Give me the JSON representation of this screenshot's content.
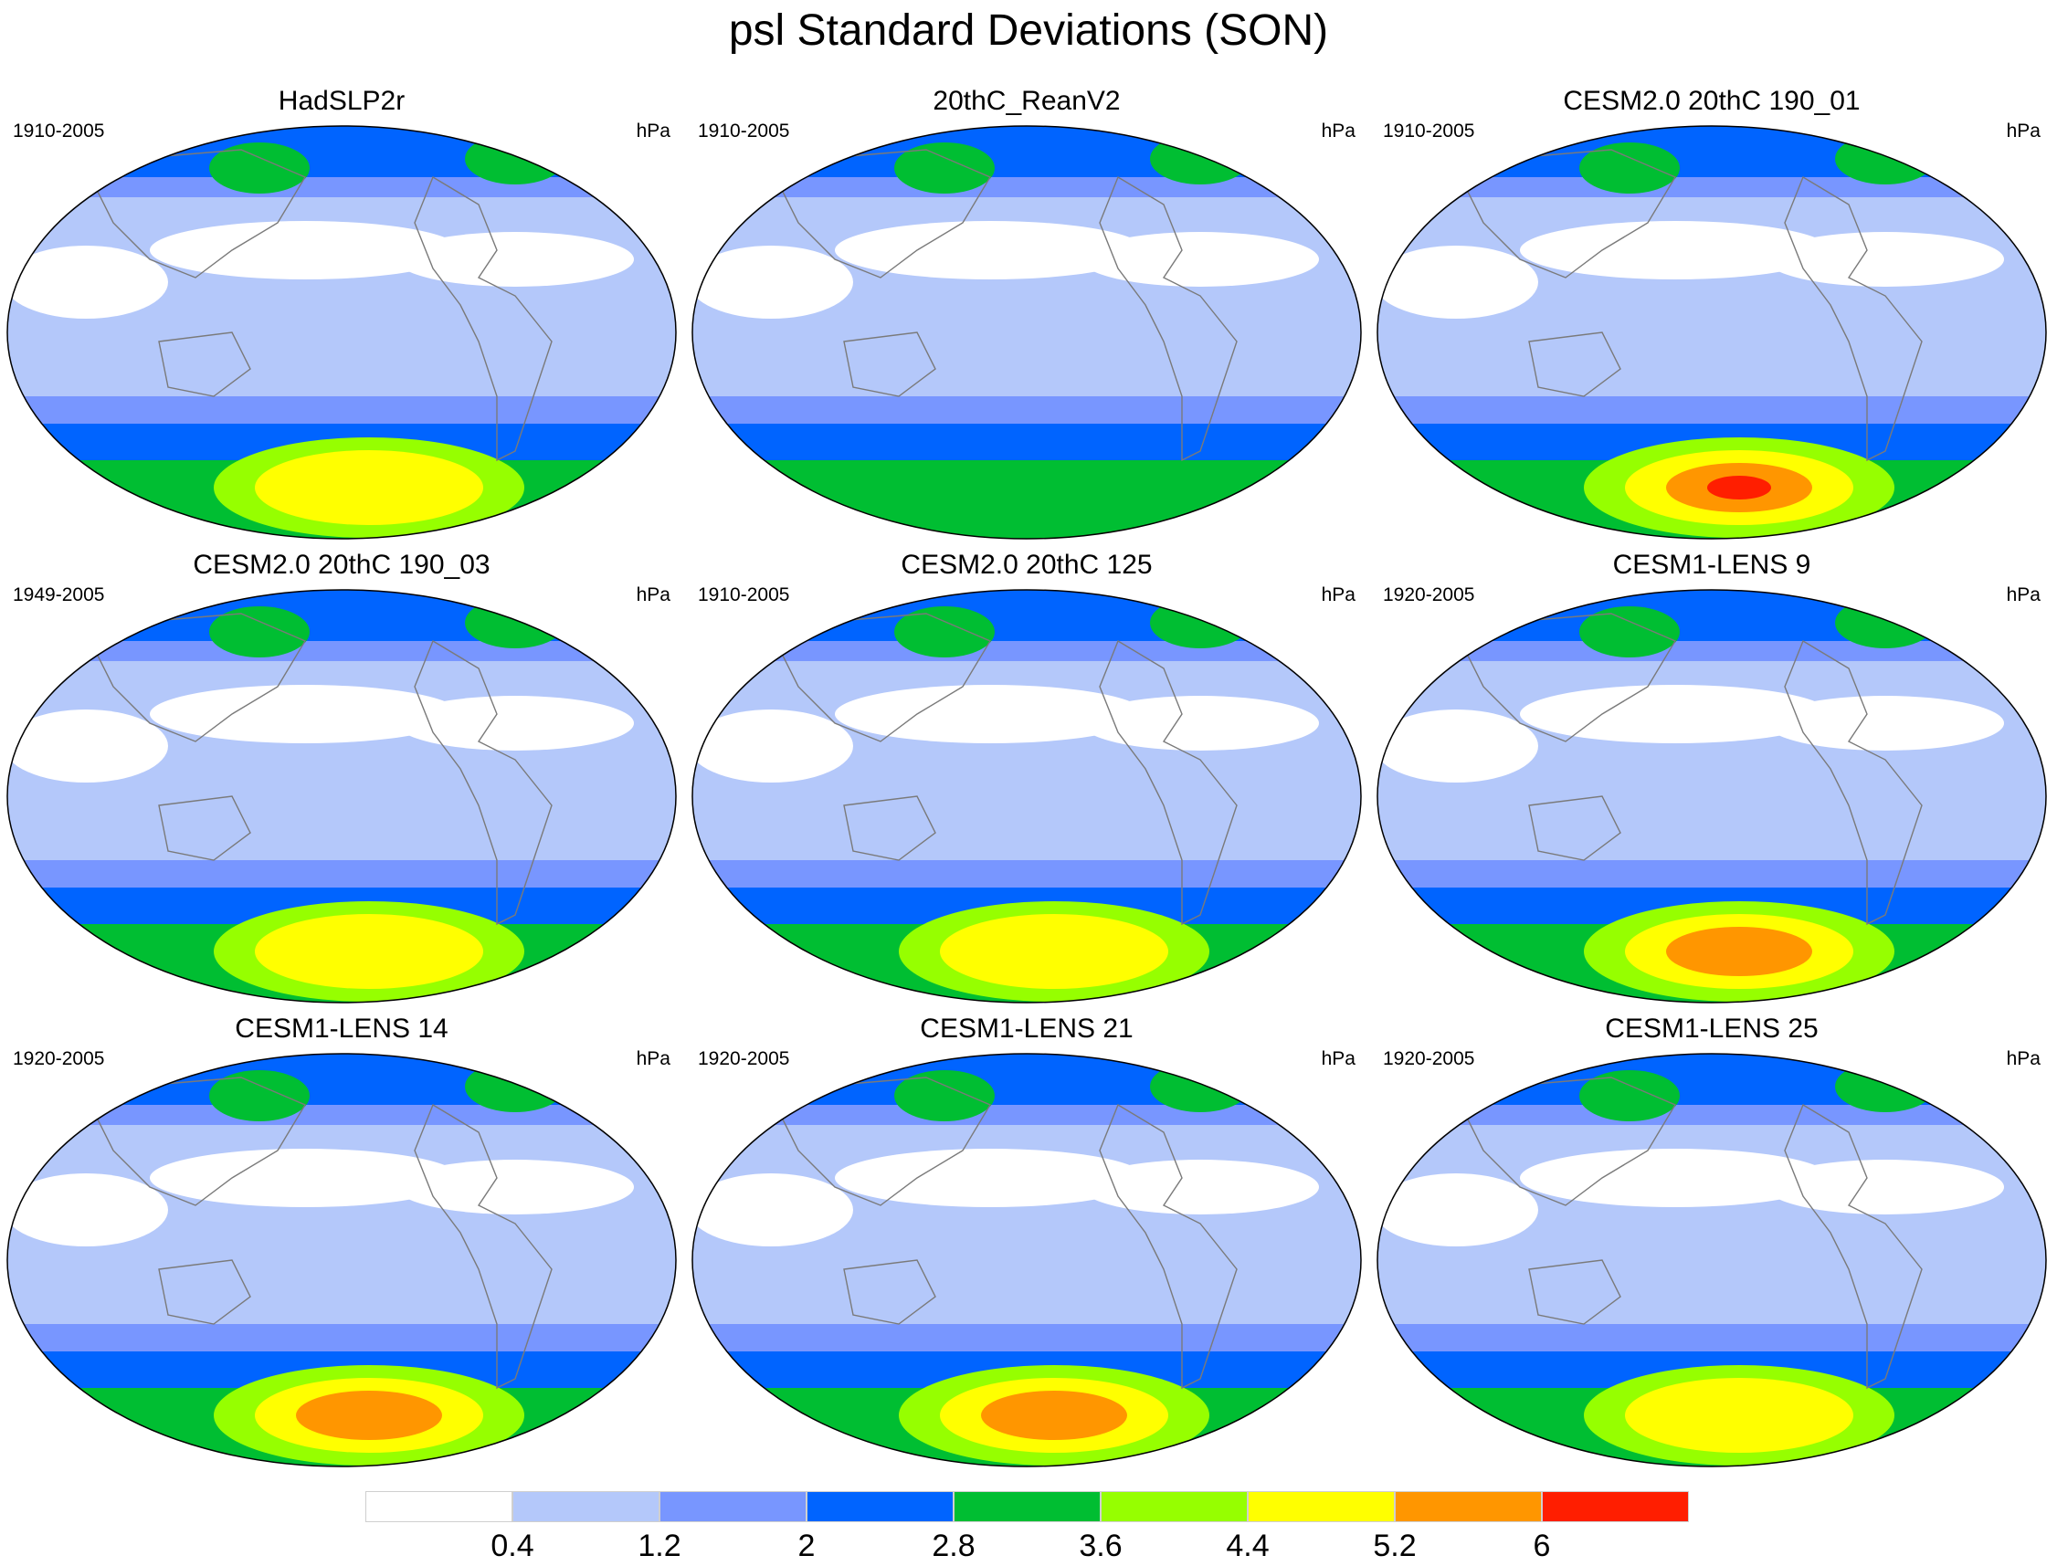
{
  "figure": {
    "title": "psl Standard Deviations (SON)",
    "units": "hPa"
  },
  "panels": [
    {
      "title": "HadSLP2r",
      "period": "1910-2005",
      "max_level": 6
    },
    {
      "title": "20thC_ReanV2",
      "period": "1910-2005",
      "max_level": 4
    },
    {
      "title": "CESM2.0 20thC 190_01",
      "period": "1910-2005",
      "max_level": 8
    },
    {
      "title": "CESM2.0 20thC 190_03",
      "period": "1949-2005",
      "max_level": 6
    },
    {
      "title": "CESM2.0 20thC 125",
      "period": "1910-2005",
      "max_level": 6
    },
    {
      "title": "CESM1-LENS 9",
      "period": "1920-2005",
      "max_level": 7
    },
    {
      "title": "CESM1-LENS 14",
      "period": "1920-2005",
      "max_level": 7
    },
    {
      "title": "CESM1-LENS 21",
      "period": "1920-2005",
      "max_level": 7
    },
    {
      "title": "CESM1-LENS 25",
      "period": "1920-2005",
      "max_level": 6
    }
  ],
  "colorbar": {
    "colors": [
      "#ffffff",
      "#b4c8fa",
      "#7896ff",
      "#0064ff",
      "#00be32",
      "#96ff00",
      "#ffff00",
      "#ff9600",
      "#ff1e00"
    ],
    "labels": [
      "0.4",
      "1.2",
      "2",
      "2.8",
      "3.6",
      "4.4",
      "5.2",
      "6"
    ]
  }
}
